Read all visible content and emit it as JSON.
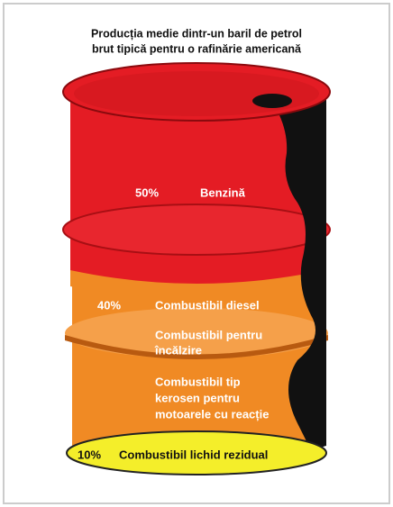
{
  "title": [
    "Producția medie dintr-un baril de petrol",
    "brut tipică pentru o rafinărie americană"
  ],
  "segments": [
    {
      "percent": "50%",
      "labels": [
        "Benzină"
      ]
    },
    {
      "percent": "40%",
      "labels": [
        "Combustibil diesel",
        "Combustibil pentru",
        "încălzire",
        "Combustibil tip",
        "kerosen pentru",
        "motoarele cu reacție"
      ]
    },
    {
      "percent": "10%",
      "labels": [
        "Combustibil lichid rezidual"
      ]
    }
  ]
}
